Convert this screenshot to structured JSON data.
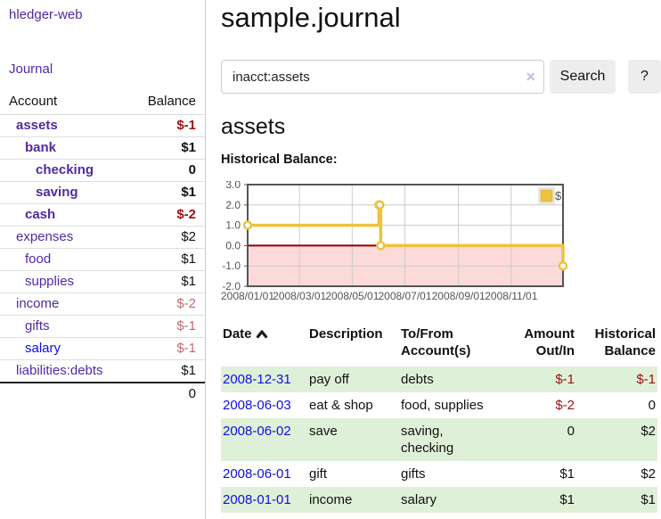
{
  "app": {
    "brand": "hledger-web",
    "nav_journal": "Journal"
  },
  "sidebar": {
    "accounts_header": {
      "account": "Account",
      "balance": "Balance"
    },
    "accounts": [
      {
        "name": "assets",
        "indent": 1,
        "bold": true,
        "link": "purple",
        "balance": "$-1",
        "tone": "neg"
      },
      {
        "name": "bank",
        "indent": 2,
        "bold": true,
        "link": "purple",
        "balance": "$1",
        "tone": "pos"
      },
      {
        "name": "checking",
        "indent": 3,
        "bold": true,
        "link": "purple",
        "balance": "0",
        "tone": "pos"
      },
      {
        "name": "saving",
        "indent": 3,
        "bold": true,
        "link": "purple",
        "balance": "$1",
        "tone": "pos"
      },
      {
        "name": "cash",
        "indent": 2,
        "bold": true,
        "link": "purple",
        "balance": "$-2",
        "tone": "neg"
      },
      {
        "name": "expenses",
        "indent": 1,
        "bold": false,
        "link": "purple",
        "balance": "$2",
        "tone": "pos"
      },
      {
        "name": "food",
        "indent": 2,
        "bold": false,
        "link": "purple",
        "balance": "$1",
        "tone": "pos"
      },
      {
        "name": "supplies",
        "indent": 2,
        "bold": false,
        "link": "purple",
        "balance": "$1",
        "tone": "pos"
      },
      {
        "name": "income",
        "indent": 1,
        "bold": false,
        "link": "purple",
        "balance": "$-2",
        "tone": "neg-soft"
      },
      {
        "name": "gifts",
        "indent": 2,
        "bold": false,
        "link": "purple",
        "balance": "$-1",
        "tone": "neg-soft"
      },
      {
        "name": "salary",
        "indent": 2,
        "bold": false,
        "link": "blue",
        "balance": "$-1",
        "tone": "neg-soft"
      },
      {
        "name": "liabilities:debts",
        "indent": 1,
        "bold": false,
        "link": "purple",
        "balance": "$1",
        "tone": "pos"
      }
    ],
    "total": "0"
  },
  "header": {
    "title": "sample.journal"
  },
  "search": {
    "value": "inacct:assets",
    "clear_icon": "×",
    "button_label": "Search",
    "help_label": "?"
  },
  "register": {
    "account_title": "assets",
    "chart_label": "Historical Balance:",
    "table": {
      "headers": {
        "date": "Date",
        "description": "Description",
        "accounts": "To/From Account(s)",
        "amount": "Amount Out/In",
        "balance": "Historical Balance"
      },
      "rows": [
        {
          "date": "2008-12-31",
          "description": "pay off",
          "accounts": "debts",
          "amount": "$-1",
          "amount_neg": true,
          "balance": "$-1",
          "balance_neg": true,
          "shaded": true
        },
        {
          "date": "2008-06-03",
          "description": "eat & shop",
          "accounts": "food, supplies",
          "amount": "$-2",
          "amount_neg": true,
          "balance": "0",
          "balance_neg": false,
          "shaded": false
        },
        {
          "date": "2008-06-02",
          "description": "save",
          "accounts": "saving, checking",
          "amount": "0",
          "amount_neg": false,
          "balance": "$2",
          "balance_neg": false,
          "shaded": true
        },
        {
          "date": "2008-06-01",
          "description": "gift",
          "accounts": "gifts",
          "amount": "$1",
          "amount_neg": false,
          "balance": "$2",
          "balance_neg": false,
          "shaded": false
        },
        {
          "date": "2008-01-01",
          "description": "income",
          "accounts": "salary",
          "amount": "$1",
          "amount_neg": false,
          "balance": "$1",
          "balance_neg": false,
          "shaded": true
        }
      ]
    }
  },
  "chart_data": {
    "type": "line",
    "step": true,
    "title": "Historical Balance",
    "xlabel": "",
    "ylabel": "",
    "x_start": "2008-01-01",
    "series": [
      {
        "name": "$",
        "color": "#EDC240",
        "points": [
          [
            "2008-01-01",
            1
          ],
          [
            "2008-06-01",
            2
          ],
          [
            "2008-06-02",
            2
          ],
          [
            "2008-06-03",
            0
          ],
          [
            "2008-12-31",
            -1
          ]
        ]
      }
    ],
    "ylim": [
      -2,
      3
    ],
    "yticks": [
      "3.0",
      "2.0",
      "1.0",
      "0.0",
      "-1.0",
      "-2.0"
    ],
    "xticks": [
      "2008/01/01",
      "2008/03/01",
      "2008/05/01",
      "2008/07/01",
      "2008/09/01",
      "2008/11/01"
    ],
    "grid": true,
    "grid_color": "#cccccc",
    "border_color": "#555555",
    "axis_text_color": "#545454",
    "negative_region_fill": "#fcdada",
    "zero_line_color": "#8b0000",
    "legend": {
      "label": "$",
      "position": "top-right"
    }
  },
  "colors": {
    "link_purple": "#5229a3",
    "link_blue": "#0f0fe0",
    "negative_strong": "#9a1111",
    "negative_soft": "#c06b6b",
    "row_shade_green": "#dff0d8",
    "series_gold": "#EDC240"
  }
}
